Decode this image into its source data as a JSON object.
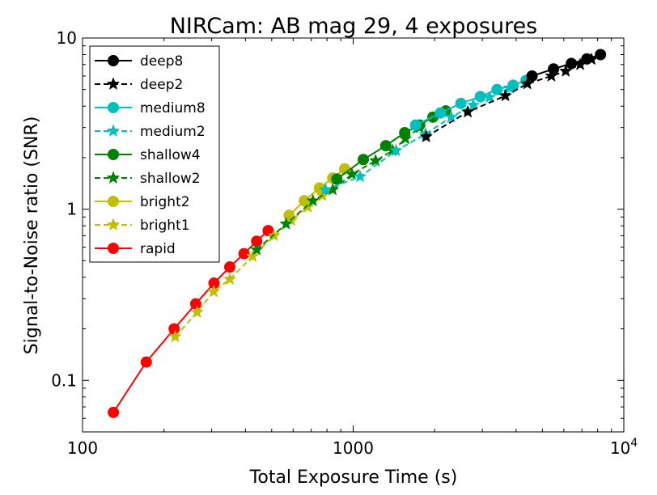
{
  "chart_data": {
    "type": "line",
    "title": "NIRCam: AB mag 29, 4 exposures",
    "xlabel": "Total Exposure Time (s)",
    "ylabel": "Signal-to-Noise ratio (SNR)",
    "xscale": "log",
    "yscale": "log",
    "xlim": [
      100,
      10000
    ],
    "ylim": [
      0.05,
      10
    ],
    "xticks": [
      {
        "value": 100,
        "label": "100"
      },
      {
        "value": 1000,
        "label": "1000"
      },
      {
        "value": 10000,
        "label": "10",
        "exponent": "4"
      }
    ],
    "yticks": [
      {
        "value": 0.1,
        "label": "0.1"
      },
      {
        "value": 1,
        "label": "1"
      },
      {
        "value": 10,
        "label": "10"
      }
    ],
    "legend": "top-left",
    "grid": false,
    "series": [
      {
        "name": "deep8",
        "color": "#000000",
        "marker": "circle",
        "linestyle": "solid",
        "x": [
          4580,
          5500,
          6400,
          7300,
          8200
        ],
        "y": [
          6.0,
          6.6,
          7.1,
          7.55,
          8.0
        ]
      },
      {
        "name": "deep2",
        "color": "#000000",
        "marker": "star",
        "linestyle": "dashed",
        "x": [
          1860,
          2650,
          3650,
          4400,
          5400,
          6100,
          6900,
          7600
        ],
        "y": [
          2.65,
          3.7,
          4.6,
          5.4,
          6.0,
          6.4,
          7.0,
          7.5
        ]
      },
      {
        "name": "medium8",
        "color": "#00bfbf",
        "marker": "circle",
        "linestyle": "solid",
        "x": [
          1700,
          2100,
          2500,
          2950,
          3400,
          3900,
          4350
        ],
        "y": [
          3.1,
          3.65,
          4.15,
          4.55,
          5.0,
          5.3,
          5.65
        ]
      },
      {
        "name": "medium2",
        "color": "#00bfbf",
        "marker": "star",
        "linestyle": "dashed",
        "x": [
          790,
          1060,
          1440,
          1850,
          2300,
          2780,
          3190,
          3780
        ],
        "y": [
          1.3,
          1.55,
          2.2,
          2.75,
          3.45,
          4.05,
          4.5,
          5.1
        ]
      },
      {
        "name": "shallow4",
        "color": "#008000",
        "marker": "circle",
        "linestyle": "solid",
        "x": [
          870,
          1090,
          1320,
          1550,
          1760,
          1970,
          2200
        ],
        "y": [
          1.5,
          1.95,
          2.35,
          2.8,
          3.1,
          3.45,
          3.75
        ]
      },
      {
        "name": "shallow2",
        "color": "#008000",
        "marker": "star",
        "linestyle": "dashed",
        "x": [
          440,
          565,
          710,
          840,
          990,
          1210,
          1400,
          1560,
          1760
        ],
        "y": [
          0.58,
          0.82,
          1.12,
          1.3,
          1.6,
          1.92,
          2.2,
          2.58,
          3.0
        ]
      },
      {
        "name": "bright2",
        "color": "#bfbf00",
        "marker": "circle",
        "linestyle": "solid",
        "x": [
          580,
          660,
          750,
          840,
          930
        ],
        "y": [
          0.92,
          1.12,
          1.33,
          1.52,
          1.72
        ]
      },
      {
        "name": "bright1",
        "color": "#bfbf00",
        "marker": "star",
        "linestyle": "dashed",
        "x": [
          220,
          265,
          305,
          350,
          425,
          510,
          590,
          680,
          770
        ],
        "y": [
          0.18,
          0.25,
          0.33,
          0.39,
          0.53,
          0.7,
          0.86,
          1.03,
          1.2
        ]
      },
      {
        "name": "rapid",
        "color": "#ff0000",
        "marker": "circle",
        "linestyle": "solid",
        "x": [
          130,
          172,
          218,
          262,
          306,
          350,
          395,
          440,
          485
        ],
        "y": [
          0.065,
          0.128,
          0.2,
          0.28,
          0.37,
          0.46,
          0.55,
          0.65,
          0.75
        ]
      }
    ]
  }
}
